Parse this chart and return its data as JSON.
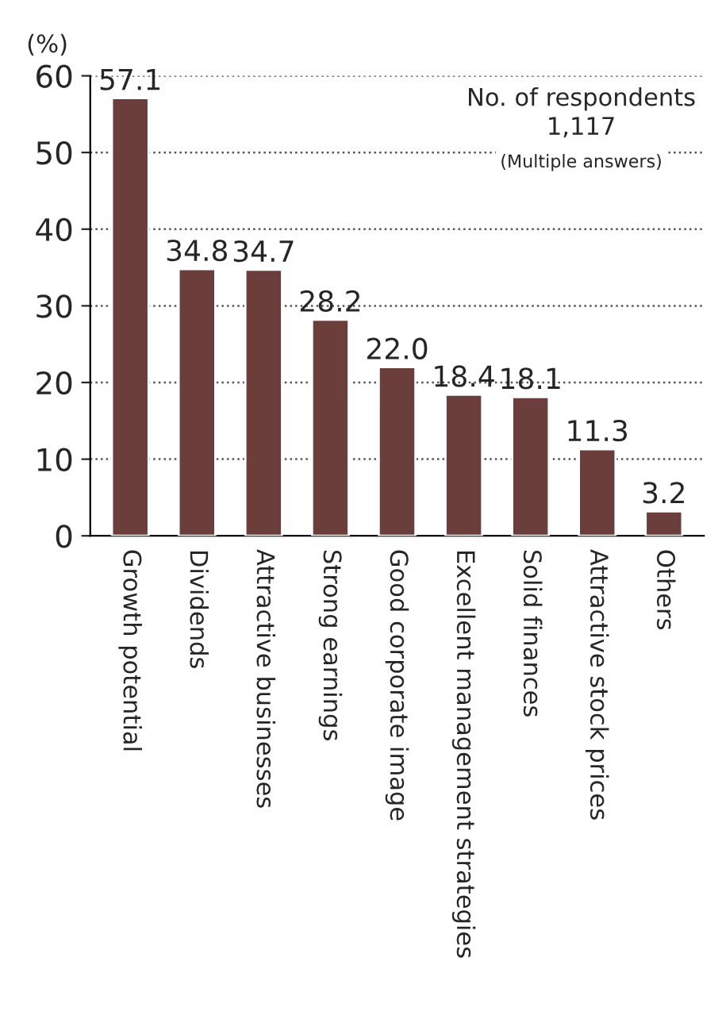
{
  "chart_data": {
    "type": "bar",
    "ylabel": "(%)",
    "categories": [
      "Growth potential",
      "Dividends",
      "Attractive businesses",
      "Strong earnings",
      "Good corporate image",
      "Excellent management strategies",
      "Solid finances",
      "Attractive stock prices",
      "Others"
    ],
    "values": [
      57.1,
      34.8,
      34.7,
      28.2,
      22.0,
      18.4,
      18.1,
      11.3,
      3.2
    ],
    "color": "#6b3e3c",
    "value_labels": [
      "57.1",
      "34.8",
      "34.7",
      "28.2",
      "22.0",
      "18.4",
      "18.1",
      "11.3",
      "3.2"
    ],
    "ylim": [
      0,
      60
    ],
    "yticks": [
      0,
      10,
      20,
      30,
      40,
      50,
      60
    ],
    "grid": "y",
    "annotations": [
      "No. of respondents\n1,117",
      "(Multiple answers)"
    ]
  }
}
